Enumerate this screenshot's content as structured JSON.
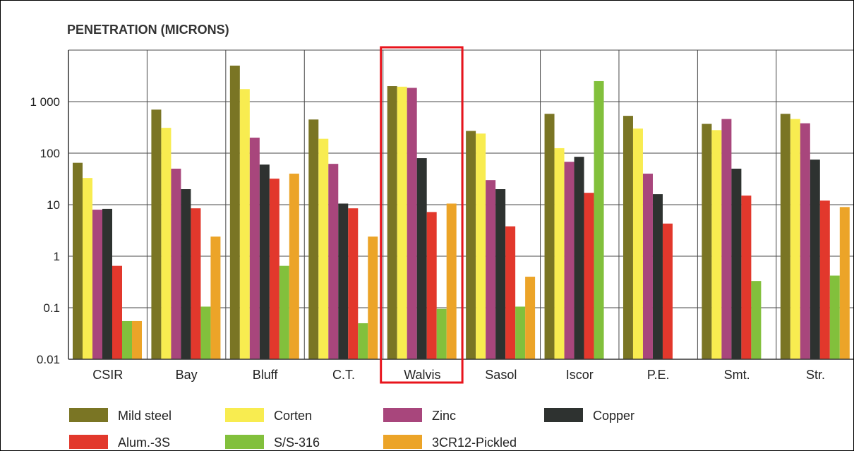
{
  "chart_data": {
    "type": "bar",
    "title": "PENETRATION (MICRONS)",
    "xlabel": "",
    "ylabel": "",
    "y_scale": "log",
    "ylim": [
      0.01,
      10000
    ],
    "y_ticks": [
      {
        "value": 0.01,
        "label": "0.01"
      },
      {
        "value": 0.1,
        "label": "0.1"
      },
      {
        "value": 1,
        "label": "1"
      },
      {
        "value": 10,
        "label": "10"
      },
      {
        "value": 100,
        "label": "100"
      },
      {
        "value": 1000,
        "label": "1 000"
      }
    ],
    "grid": true,
    "legend_position": "bottom",
    "categories": [
      "CSIR",
      "Bay",
      "Bluff",
      "C.T.",
      "Walvis",
      "Sasol",
      "Iscor",
      "P.E.",
      "Smt.",
      "Str."
    ],
    "highlighted_category": "Walvis",
    "highlight_color": "#e8141c",
    "series": [
      {
        "name": "Mild steel",
        "color": "#7a7524",
        "values": [
          65,
          700,
          5000,
          450,
          2000,
          270,
          580,
          530,
          370,
          580
        ]
      },
      {
        "name": "Corten",
        "color": "#f8ec50",
        "values": [
          33,
          310,
          1750,
          190,
          1950,
          240,
          125,
          300,
          280,
          460
        ]
      },
      {
        "name": "Zinc",
        "color": "#a8467c",
        "values": [
          8,
          50,
          200,
          62,
          1850,
          30,
          68,
          40,
          460,
          380
        ]
      },
      {
        "name": "Copper",
        "color": "#2e3230",
        "values": [
          8.3,
          20,
          60,
          10.5,
          80,
          20,
          85,
          16,
          50,
          75
        ]
      },
      {
        "name": "Alum.-3S",
        "color": "#e2382c",
        "values": [
          0.65,
          8.5,
          32,
          8.5,
          7.2,
          3.8,
          17,
          4.3,
          15,
          12
        ]
      },
      {
        "name": "S/S-316",
        "color": "#82c03c",
        "values": [
          0.055,
          0.105,
          0.65,
          0.05,
          0.095,
          0.105,
          2500,
          null,
          0.33,
          0.42
        ]
      },
      {
        "name": "3CR12-Pickled",
        "color": "#eca428",
        "values": [
          0.055,
          2.4,
          40,
          2.4,
          10.5,
          0.4,
          null,
          null,
          null,
          9
        ]
      }
    ]
  }
}
